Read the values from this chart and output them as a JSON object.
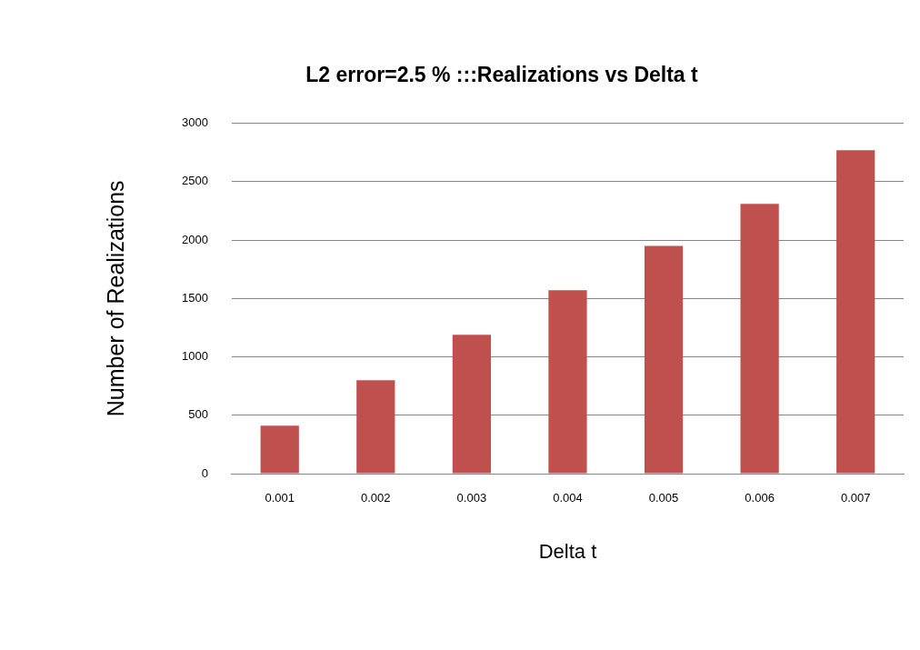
{
  "chart_data": {
    "type": "bar",
    "title": "L2 error=2.5 % :::Realizations vs Delta t",
    "xlabel": "Delta t",
    "ylabel": "Number of Realizations",
    "categories": [
      "0.001",
      "0.002",
      "0.003",
      "0.004",
      "0.005",
      "0.006",
      "0.007"
    ],
    "values": [
      410,
      800,
      1190,
      1570,
      1950,
      2310,
      2770
    ],
    "color": "#c0504d",
    "ylim": [
      0,
      3000
    ],
    "yticks": [
      0,
      500,
      1000,
      1500,
      2000,
      2500,
      3000
    ],
    "grid": "y",
    "legend": false
  }
}
